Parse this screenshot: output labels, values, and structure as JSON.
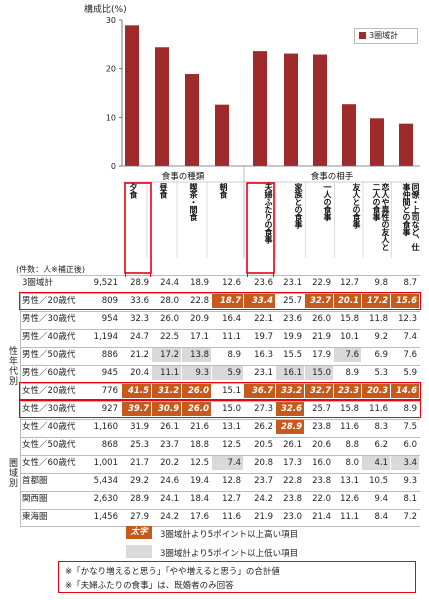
{
  "chart_data": {
    "type": "bar",
    "ylabel": "構成比(%)",
    "ylim": [
      0,
      30
    ],
    "yticks": [
      0,
      10,
      20,
      30
    ],
    "legend": "3圏域計",
    "legend_position": "top-right",
    "groups": [
      {
        "label": "食事の種類",
        "categories": [
          "夕食",
          "昼食",
          "喫茶・間食",
          "朝食"
        ]
      },
      {
        "label": "食事の相手",
        "categories": [
          "夫婦ふたりの食事",
          "家族との食事",
          "一人の食事",
          "友人との食事",
          "恋人や異性の友人と二人の食事",
          "同僚・上司など、仕事仲間との食事"
        ]
      }
    ],
    "series": [
      {
        "name": "3圏域計",
        "values": [
          28.9,
          24.4,
          18.9,
          12.6,
          23.6,
          23.1,
          22.9,
          12.7,
          9.8,
          8.7
        ]
      }
    ],
    "colors": {
      "bar": "#9e2a2b",
      "highlight_box": "#e60012",
      "high_cell": "#c55a1c",
      "low_cell": "#d9d9d9"
    }
  },
  "table": {
    "count_header": "(件数：人※補正後)",
    "side_labels": {
      "gender_age": "性年代別",
      "area": "圏域別"
    },
    "rows": [
      {
        "label": "3圏域計",
        "n": "9,521",
        "v": [
          "28.9",
          "24.4",
          "18.9",
          "12.6",
          "23.6",
          "23.1",
          "22.9",
          "12.7",
          "9.8",
          "8.7"
        ],
        "s": "nnnnnnnnnn"
      },
      {
        "label": "男性／20歳代",
        "n": "809",
        "v": [
          "33.6",
          "28.0",
          "22.8",
          "18.7",
          "33.4",
          "25.7",
          "32.7",
          "20.1",
          "17.2",
          "15.6"
        ],
        "s": "nnnhhnhhhh"
      },
      {
        "label": "男性／30歳代",
        "n": "954",
        "v": [
          "32.3",
          "26.0",
          "20.9",
          "16.4",
          "22.1",
          "23.6",
          "26.0",
          "15.8",
          "11.8",
          "12.3"
        ],
        "s": "nnnnnnnnnn"
      },
      {
        "label": "男性／40歳代",
        "n": "1,194",
        "v": [
          "24.7",
          "22.5",
          "17.1",
          "11.1",
          "19.7",
          "19.9",
          "21.9",
          "10.1",
          "9.2",
          "7.4"
        ],
        "s": "nnnnnnnnnn"
      },
      {
        "label": "男性／50歳代",
        "n": "886",
        "v": [
          "21.2",
          "17.2",
          "13.8",
          "8.9",
          "16.3",
          "15.5",
          "17.9",
          "7.6",
          "6.9",
          "7.6"
        ],
        "s": "nllnnnnlnn"
      },
      {
        "label": "男性／60歳代",
        "n": "945",
        "v": [
          "20.4",
          "11.1",
          "9.3",
          "5.9",
          "23.1",
          "16.1",
          "15.0",
          "8.9",
          "5.3",
          "5.9"
        ],
        "s": "nlllnllnnn"
      },
      {
        "label": "女性／20歳代",
        "n": "776",
        "v": [
          "41.5",
          "31.2",
          "26.0",
          "15.1",
          "36.7",
          "33.2",
          "32.7",
          "23.3",
          "20.3",
          "14.6"
        ],
        "s": "hhhnhhhhhh"
      },
      {
        "label": "女性／30歳代",
        "n": "927",
        "v": [
          "39.7",
          "30.9",
          "26.0",
          "15.0",
          "27.3",
          "32.6",
          "25.7",
          "15.8",
          "11.6",
          "8.9"
        ],
        "s": "hhhnnhnnnn"
      },
      {
        "label": "女性／40歳代",
        "n": "1,160",
        "v": [
          "31.9",
          "26.1",
          "21.6",
          "13.1",
          "26.2",
          "28.9",
          "23.8",
          "11.6",
          "8.3",
          "7.5"
        ],
        "s": "nnnnnhnnnn"
      },
      {
        "label": "女性／50歳代",
        "n": "868",
        "v": [
          "25.3",
          "23.7",
          "18.8",
          "12.5",
          "20.5",
          "26.1",
          "20.6",
          "8.8",
          "6.2",
          "6.0"
        ],
        "s": "nnnnnnnnnn"
      },
      {
        "label": "女性／60歳代",
        "n": "1,001",
        "v": [
          "21.7",
          "20.2",
          "12.5",
          "7.4",
          "20.8",
          "17.3",
          "16.0",
          "8.0",
          "4.1",
          "3.4"
        ],
        "s": "nnnlnnnnll"
      },
      {
        "label": "首都圏",
        "n": "5,434",
        "v": [
          "29.2",
          "24.6",
          "19.4",
          "12.8",
          "23.7",
          "22.8",
          "23.8",
          "13.1",
          "10.5",
          "9.3"
        ],
        "s": "nnnnnnnnnn"
      },
      {
        "label": "関西圏",
        "n": "2,630",
        "v": [
          "28.9",
          "24.1",
          "18.4",
          "12.7",
          "24.2",
          "23.8",
          "22.0",
          "12.6",
          "9.4",
          "8.1"
        ],
        "s": "nnnnnnnnnn"
      },
      {
        "label": "東海圏",
        "n": "1,456",
        "v": [
          "27.9",
          "24.2",
          "17.6",
          "11.6",
          "21.9",
          "23.0",
          "21.4",
          "11.1",
          "8.4",
          "7.2"
        ],
        "s": "nnnnnnnnnn"
      }
    ]
  },
  "legend_box": {
    "bold_sample": "太字",
    "high_text": "3圏域計より5ポイント以上高い項目",
    "low_text": "3圏域計より5ポイント以上低い項目"
  },
  "notes": [
    "※「かなり増えると思う」「やや増えると思う」の合計値",
    "※「夫婦ふたりの食事」は、既婚者のみ回答"
  ]
}
